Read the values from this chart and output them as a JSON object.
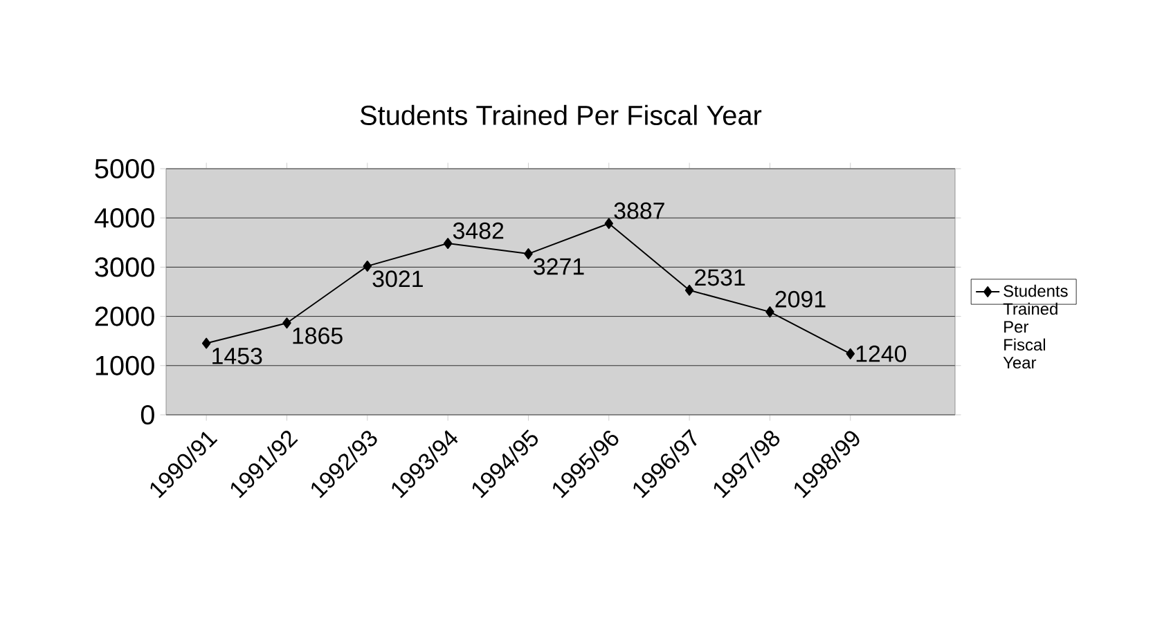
{
  "chart_data": {
    "type": "line",
    "title": "Students Trained Per Fiscal Year",
    "categories": [
      "1990/91",
      "1991/92",
      "1992/93",
      "1993/94",
      "1994/95",
      "1995/96",
      "1996/97",
      "1997/98",
      "1998/99"
    ],
    "series": [
      {
        "name": "Students Trained Per Fiscal Year",
        "color": "#000000",
        "values": [
          1453,
          1865,
          3021,
          3482,
          3271,
          3887,
          2531,
          2091,
          1240
        ]
      }
    ],
    "ylim": [
      0,
      5000
    ],
    "yticks": [
      0,
      1000,
      2000,
      3000,
      4000,
      5000
    ],
    "grid": "y",
    "legend": "right",
    "marker": "diamond",
    "line_style": "solid",
    "data_labels": true
  }
}
